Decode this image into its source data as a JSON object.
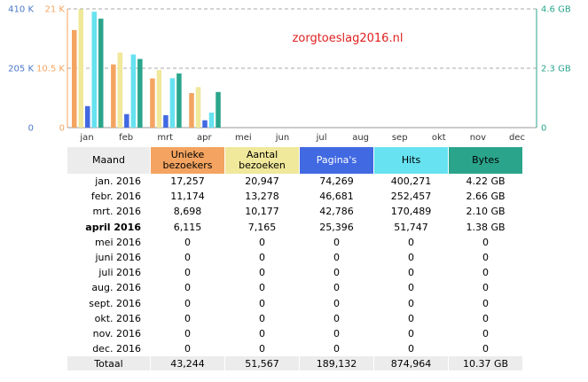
{
  "chart_data": {
    "type": "bar",
    "title": "zorgtoeslag2016.nl",
    "categories": [
      "jan",
      "feb",
      "mrt",
      "apr",
      "mei",
      "jun",
      "jul",
      "aug",
      "sep",
      "okt",
      "nov",
      "dec"
    ],
    "series": [
      {
        "name": "Unieke bezoekers",
        "values": [
          17257,
          11174,
          8698,
          6115,
          0,
          0,
          0,
          0,
          0,
          0,
          0,
          0
        ],
        "axis": "left-inner",
        "color": "#f4a460"
      },
      {
        "name": "Aantal bezoeken",
        "values": [
          20947,
          13278,
          10177,
          7165,
          0,
          0,
          0,
          0,
          0,
          0,
          0,
          0
        ],
        "axis": "left-inner",
        "color": "#f0e89a"
      },
      {
        "name": "Pagina's",
        "values": [
          74269,
          46681,
          42786,
          25396,
          0,
          0,
          0,
          0,
          0,
          0,
          0,
          0
        ],
        "axis": "left-outer",
        "color": "#4169e1"
      },
      {
        "name": "Hits",
        "values": [
          400271,
          252457,
          170489,
          51747,
          0,
          0,
          0,
          0,
          0,
          0,
          0,
          0
        ],
        "axis": "left-outer",
        "color": "#66e2f0"
      },
      {
        "name": "Bytes",
        "values": [
          4.22,
          2.66,
          2.1,
          1.38,
          0,
          0,
          0,
          0,
          0,
          0,
          0,
          0
        ],
        "axis": "right",
        "color": "#2aa58c"
      }
    ],
    "axes": {
      "left_outer": {
        "ylim": [
          0,
          410000
        ],
        "ticks": [
          {
            "value": 410000,
            "label": "410 K"
          },
          {
            "value": 205000,
            "label": "205 K"
          },
          {
            "value": 0,
            "label": "0"
          }
        ],
        "color": "#4a78c8"
      },
      "left_inner": {
        "ylim": [
          0,
          21000
        ],
        "ticks": [
          {
            "value": 21000,
            "label": "21 K"
          },
          {
            "value": 10500,
            "label": "10.5 K"
          },
          {
            "value": 0,
            "label": "0"
          }
        ],
        "color": "#f4a460"
      },
      "right": {
        "ylim": [
          0,
          4.6
        ],
        "ticks": [
          {
            "value": 4.6,
            "label": "4.6 GB"
          },
          {
            "value": 2.3,
            "label": "2.3 GB"
          },
          {
            "value": 0,
            "label": "0"
          }
        ],
        "color": "#2aa58c"
      }
    },
    "grid": true
  },
  "table": {
    "headers": [
      {
        "label": "Maand",
        "bg": "#ececec"
      },
      {
        "label": "Unieke\nbezoekers",
        "bg": "#f4a460"
      },
      {
        "label": "Aantal\nbezoeken",
        "bg": "#f0e89a"
      },
      {
        "label": "Pagina's",
        "bg": "#4169e1"
      },
      {
        "label": "Hits",
        "bg": "#66e2f0"
      },
      {
        "label": "Bytes",
        "bg": "#2aa58c"
      }
    ],
    "rows": [
      {
        "month": "jan. 2016",
        "unique": "17,257",
        "visits": "20,947",
        "pages": "74,269",
        "hits": "400,271",
        "bytes": "4.22 GB",
        "current": false
      },
      {
        "month": "febr. 2016",
        "unique": "11,174",
        "visits": "13,278",
        "pages": "46,681",
        "hits": "252,457",
        "bytes": "2.66 GB",
        "current": false
      },
      {
        "month": "mrt. 2016",
        "unique": "8,698",
        "visits": "10,177",
        "pages": "42,786",
        "hits": "170,489",
        "bytes": "2.10 GB",
        "current": false
      },
      {
        "month": "april 2016",
        "unique": "6,115",
        "visits": "7,165",
        "pages": "25,396",
        "hits": "51,747",
        "bytes": "1.38 GB",
        "current": true
      },
      {
        "month": "mei 2016",
        "unique": "0",
        "visits": "0",
        "pages": "0",
        "hits": "0",
        "bytes": "0",
        "current": false
      },
      {
        "month": "juni 2016",
        "unique": "0",
        "visits": "0",
        "pages": "0",
        "hits": "0",
        "bytes": "0",
        "current": false
      },
      {
        "month": "juli 2016",
        "unique": "0",
        "visits": "0",
        "pages": "0",
        "hits": "0",
        "bytes": "0",
        "current": false
      },
      {
        "month": "aug. 2016",
        "unique": "0",
        "visits": "0",
        "pages": "0",
        "hits": "0",
        "bytes": "0",
        "current": false
      },
      {
        "month": "sept. 2016",
        "unique": "0",
        "visits": "0",
        "pages": "0",
        "hits": "0",
        "bytes": "0",
        "current": false
      },
      {
        "month": "okt. 2016",
        "unique": "0",
        "visits": "0",
        "pages": "0",
        "hits": "0",
        "bytes": "0",
        "current": false
      },
      {
        "month": "nov. 2016",
        "unique": "0",
        "visits": "0",
        "pages": "0",
        "hits": "0",
        "bytes": "0",
        "current": false
      },
      {
        "month": "dec. 2016",
        "unique": "0",
        "visits": "0",
        "pages": "0",
        "hits": "0",
        "bytes": "0",
        "current": false
      }
    ],
    "total": {
      "month": "Totaal",
      "unique": "43,244",
      "visits": "51,567",
      "pages": "189,132",
      "hits": "874,964",
      "bytes": "10.37 GB"
    }
  }
}
